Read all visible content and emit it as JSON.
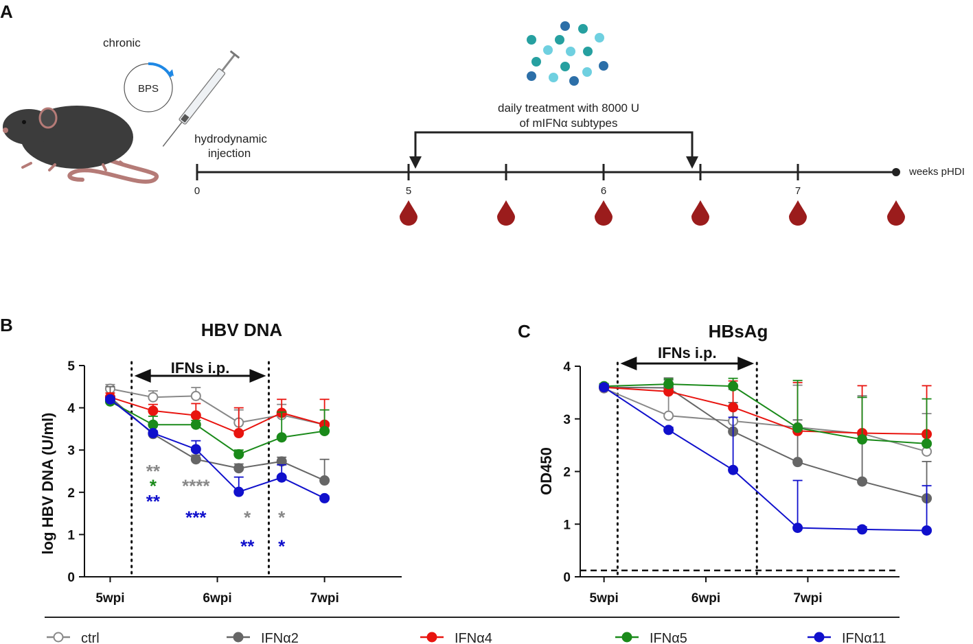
{
  "panel_a": {
    "letter": "A",
    "chronic_label": "chronic",
    "plasmid_label": "BPS",
    "injection_label_1": "hydrodynamic",
    "injection_label_2": "injection",
    "treatment_label_1": "daily treatment with 8000 U",
    "treatment_label_2": "of mIFNα subtypes",
    "timeline_ticks": [
      "0",
      "5",
      "6",
      "7"
    ],
    "timeline_end_label": "weeks pHDI",
    "colors": {
      "mouse": "#3c3c3c",
      "tail": "#b57b77",
      "blood": "#9b1c1c",
      "arrow": "#1e88e5"
    }
  },
  "chart_data": [
    {
      "type": "line",
      "panel": "B",
      "title": "HBV DNA",
      "ylabel": "log HBV DNA (U/ml)",
      "ylim": [
        0,
        5
      ],
      "yticks": [
        "0",
        "1",
        "2",
        "3",
        "4",
        "5"
      ],
      "x": [
        0,
        1,
        2,
        3,
        4,
        5,
        6
      ],
      "xticks": [
        {
          "pos": 0,
          "label": "5wpi"
        },
        {
          "pos": 2.5,
          "label": "6wpi"
        },
        {
          "pos": 5,
          "label": "7wpi"
        }
      ],
      "xlim": [
        -0.6,
        6.8
      ],
      "treatment_window": [
        0.5,
        3.7
      ],
      "treatment_label": "IFNs i.p.",
      "series": [
        {
          "name": "ctrl",
          "color": "#888888",
          "open": true,
          "values": [
            4.45,
            4.25,
            4.28,
            3.65,
            3.83,
            3.6
          ],
          "x": [
            0,
            1,
            2,
            3,
            4,
            5
          ],
          "err": [
            0.1,
            0.15,
            0.2,
            0.3,
            0.25,
            0.05
          ]
        },
        {
          "name": "IFNα2",
          "color": "#666666",
          "open": false,
          "values": [
            4.25,
            3.38,
            2.78,
            2.57,
            2.73,
            2.28
          ],
          "x": [
            0,
            1,
            2,
            3,
            4,
            5
          ],
          "err": [
            0.25,
            0.05,
            0.1,
            0.1,
            0.1,
            0.5
          ]
        },
        {
          "name": "IFNα4",
          "color": "#e8140f",
          "open": false,
          "values": [
            4.25,
            3.93,
            3.82,
            3.4,
            3.88,
            3.6
          ],
          "x": [
            0,
            1,
            2,
            3,
            4,
            5
          ],
          "err": [
            0.1,
            0.15,
            0.28,
            0.6,
            0.32,
            0.6
          ]
        },
        {
          "name": "IFNα5",
          "color": "#1a8a1a",
          "open": false,
          "values": [
            4.15,
            3.6,
            3.6,
            2.9,
            3.3,
            3.45
          ],
          "x": [
            0,
            1,
            2,
            3,
            4,
            5
          ],
          "err": [
            0.05,
            0.2,
            0.1,
            0.1,
            0.6,
            0.5
          ]
        },
        {
          "name": "IFNα11",
          "color": "#1010cc",
          "open": false,
          "values": [
            4.2,
            3.4,
            3.02,
            2.01,
            2.35,
            1.86
          ],
          "x": [
            0,
            1,
            2,
            3,
            4,
            5
          ],
          "err": [
            0.05,
            0.05,
            0.2,
            0.35,
            0.3,
            0.05
          ]
        }
      ],
      "annotations": [
        {
          "text": "**",
          "color": "#888888",
          "x": 1,
          "y": 2.65
        },
        {
          "text": "*",
          "color": "#1a8a1a",
          "x": 1,
          "y": 2.3
        },
        {
          "text": "**",
          "color": "#1010cc",
          "x": 1,
          "y": 1.93
        },
        {
          "text": "****",
          "color": "#888888",
          "x": 2,
          "y": 2.3
        },
        {
          "text": "***",
          "color": "#1010cc",
          "x": 2,
          "y": 1.55
        },
        {
          "text": "*",
          "color": "#888888",
          "x": 3.2,
          "y": 1.55
        },
        {
          "text": "**",
          "color": "#1010cc",
          "x": 3.2,
          "y": 0.87
        },
        {
          "text": "*",
          "color": "#888888",
          "x": 4,
          "y": 1.55
        },
        {
          "text": "*",
          "color": "#1010cc",
          "x": 4,
          "y": 0.87
        }
      ]
    },
    {
      "type": "line",
      "panel": "C",
      "title": "HBsAg",
      "ylabel": "OD450",
      "ylim": [
        0,
        4
      ],
      "yticks": [
        "0",
        "1",
        "2",
        "3",
        "4"
      ],
      "x": [
        0,
        1,
        2,
        3,
        4,
        5
      ],
      "xticks": [
        {
          "pos": 0,
          "label": "5wpi"
        },
        {
          "pos": 1.5,
          "label": "6wpi"
        },
        {
          "pos": 3,
          "label": "7wpi"
        }
      ],
      "xlim": [
        -0.35,
        4.35
      ],
      "treatment_window": [
        0.2,
        2.25
      ],
      "treatment_label": "IFNs i.p.",
      "cutoff": 0.12,
      "series": [
        {
          "name": "ctrl",
          "color": "#888888",
          "open": true,
          "values": [
            3.58,
            3.06,
            2.96,
            2.84,
            2.72,
            2.38
          ],
          "x": [
            0,
            0.95,
            1.9,
            2.85,
            3.8,
            4.75
          ],
          "err": [
            0.05,
            0.72,
            0.6,
            0.8,
            0.72,
            0.72
          ]
        },
        {
          "name": "IFNα2",
          "color": "#666666",
          "open": false,
          "values": [
            3.6,
            3.59,
            2.76,
            2.18,
            1.81,
            1.49
          ],
          "x": [
            0,
            0.95,
            1.9,
            2.85,
            3.8,
            4.75
          ],
          "err": [
            0.05,
            0.15,
            0.55,
            0.8,
            1.6,
            0.7
          ]
        },
        {
          "name": "IFNα4",
          "color": "#e8140f",
          "open": false,
          "values": [
            3.6,
            3.52,
            3.22,
            2.77,
            2.73,
            2.71
          ],
          "x": [
            0,
            0.95,
            1.9,
            2.85,
            3.8,
            4.75
          ],
          "err": [
            0.05,
            0.15,
            0.5,
            0.92,
            0.9,
            0.92
          ]
        },
        {
          "name": "IFNα5",
          "color": "#1a8a1a",
          "open": false,
          "values": [
            3.62,
            3.66,
            3.62,
            2.83,
            2.61,
            2.53
          ],
          "x": [
            0,
            0.95,
            1.9,
            2.85,
            3.8,
            4.75
          ],
          "err": [
            0.05,
            0.1,
            0.15,
            0.9,
            0.8,
            0.85
          ]
        },
        {
          "name": "IFNα11",
          "color": "#1010cc",
          "open": false,
          "values": [
            3.6,
            2.79,
            2.03,
            0.93,
            0.9,
            0.88
          ],
          "x": [
            0,
            0.95,
            1.9,
            2.85,
            3.8,
            4.75
          ],
          "err": [
            0.05,
            0.05,
            1.0,
            0.9,
            0.05,
            0.85
          ]
        }
      ]
    }
  ],
  "legend": [
    {
      "name": "ctrl",
      "color": "#888888",
      "open": true
    },
    {
      "name": "IFNα2",
      "color": "#666666",
      "open": false
    },
    {
      "name": "IFNα4",
      "color": "#e8140f",
      "open": false
    },
    {
      "name": "IFNα5",
      "color": "#1a8a1a",
      "open": false
    },
    {
      "name": "IFNα11",
      "color": "#1010cc",
      "open": false
    }
  ]
}
